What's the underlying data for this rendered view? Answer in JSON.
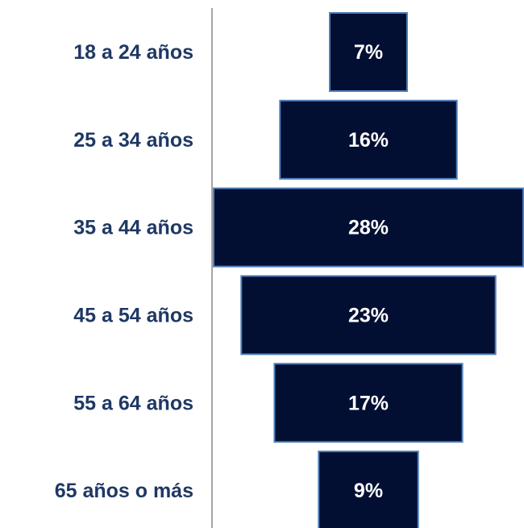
{
  "chart_data": {
    "type": "funnel",
    "categories": [
      "18 a 24 años",
      "25 a 34 años",
      "35 a 44 años",
      "45 a 54 años",
      "55 a 64 años",
      "65 años o más"
    ],
    "values": [
      7,
      16,
      28,
      23,
      17,
      9
    ],
    "value_labels": [
      "7%",
      "16%",
      "28%",
      "23%",
      "17%",
      "9%"
    ],
    "color": "#020f33"
  }
}
